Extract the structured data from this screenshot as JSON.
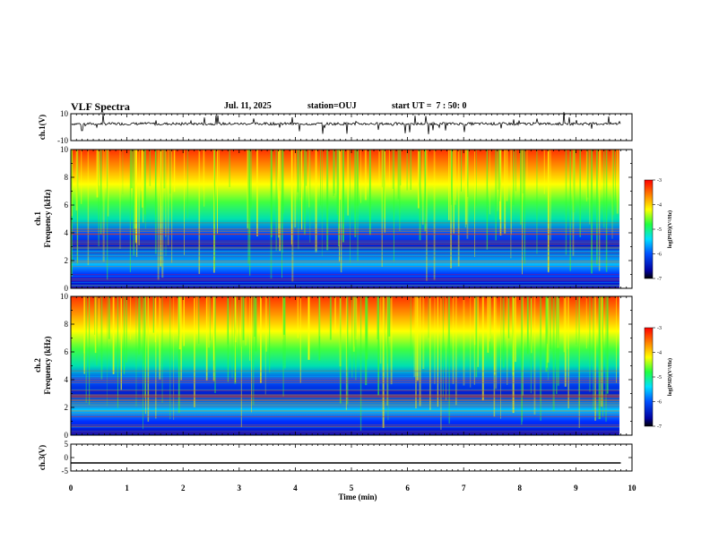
{
  "header": {
    "title": "VLF Spectra",
    "date": "Jul. 11, 2025",
    "station": "station=OUJ",
    "start_ut": "start UT =  7 : 50: 0"
  },
  "chart_data": [
    {
      "type": "line",
      "panel": "ch1-waveform",
      "ylabel": "ch.1(V)",
      "ylim": [
        -10,
        10
      ],
      "yticks": [
        "10",
        "-10"
      ],
      "x": [
        0,
        9.8
      ],
      "values_description_free": true,
      "y": [
        2.5,
        2.5
      ]
    },
    {
      "type": "heatmap",
      "panel": "ch1-spectrogram",
      "ylabel": "ch.1\nFrequency (kHz)",
      "ylabel_lines": [
        "ch.1",
        "Frequency (kHz)"
      ],
      "ylim": [
        0,
        10
      ],
      "yticks": [
        "0",
        "2",
        "4",
        "6",
        "8",
        "10"
      ],
      "xlim": [
        0,
        10
      ],
      "colorbar": {
        "label": "log(PSD)(V²/Hz)",
        "range": [
          -7,
          -3
        ],
        "ticks": [
          "-3",
          "-4",
          "-5",
          "-6",
          "-7"
        ]
      }
    },
    {
      "type": "heatmap",
      "panel": "ch2-spectrogram",
      "ylabel_lines": [
        "ch.2",
        "Frequency (kHz)"
      ],
      "ylim": [
        0,
        10
      ],
      "yticks": [
        "0",
        "2",
        "4",
        "6",
        "8",
        "10"
      ],
      "xlim": [
        0,
        10
      ],
      "colorbar": {
        "label": "log(PSD)(V²/Hz)",
        "range": [
          -7,
          -3
        ],
        "ticks": [
          "-3",
          "-4",
          "-5",
          "-6",
          "-7"
        ]
      }
    },
    {
      "type": "line",
      "panel": "ch3-waveform",
      "ylabel": "ch.3(V)",
      "ylim": [
        -5,
        5
      ],
      "yticks": [
        "5",
        "0",
        "-5"
      ],
      "x": [
        0,
        9.8
      ],
      "y": [
        -2,
        -2
      ]
    }
  ],
  "xaxis": {
    "label": "Time (min)",
    "ticks": [
      "0",
      "1",
      "2",
      "3",
      "4",
      "5",
      "6",
      "7",
      "8",
      "9",
      "10"
    ],
    "range": [
      0,
      10
    ]
  }
}
